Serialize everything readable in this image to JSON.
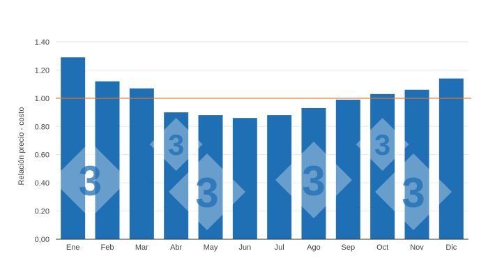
{
  "chart_data": {
    "type": "bar",
    "categories": [
      "Ene",
      "Feb",
      "Mar",
      "Abr",
      "May",
      "Jun",
      "Jul",
      "Ago",
      "Sep",
      "Oct",
      "Nov",
      "Dic"
    ],
    "values": [
      1.29,
      1.12,
      1.07,
      0.9,
      0.88,
      0.86,
      0.88,
      0.93,
      0.99,
      1.03,
      1.06,
      1.14
    ],
    "title": "",
    "xlabel": "",
    "ylabel": "Relación precio - costo",
    "ylim": [
      0,
      1.4
    ],
    "yticks": [
      0,
      0.2,
      0.4,
      0.6,
      0.8,
      1.0,
      1.2,
      1.4
    ],
    "ytick_labels": [
      "0,00",
      "0.20",
      "0.40",
      "0.60",
      "0.80",
      "1.00",
      "1.20",
      "1.40"
    ],
    "reference_line": {
      "value": 1.0,
      "color": "#e07b39"
    },
    "bar_color": "#1f6fb4",
    "grid": true,
    "legend": "none"
  },
  "watermark": {
    "glyph": "3"
  }
}
